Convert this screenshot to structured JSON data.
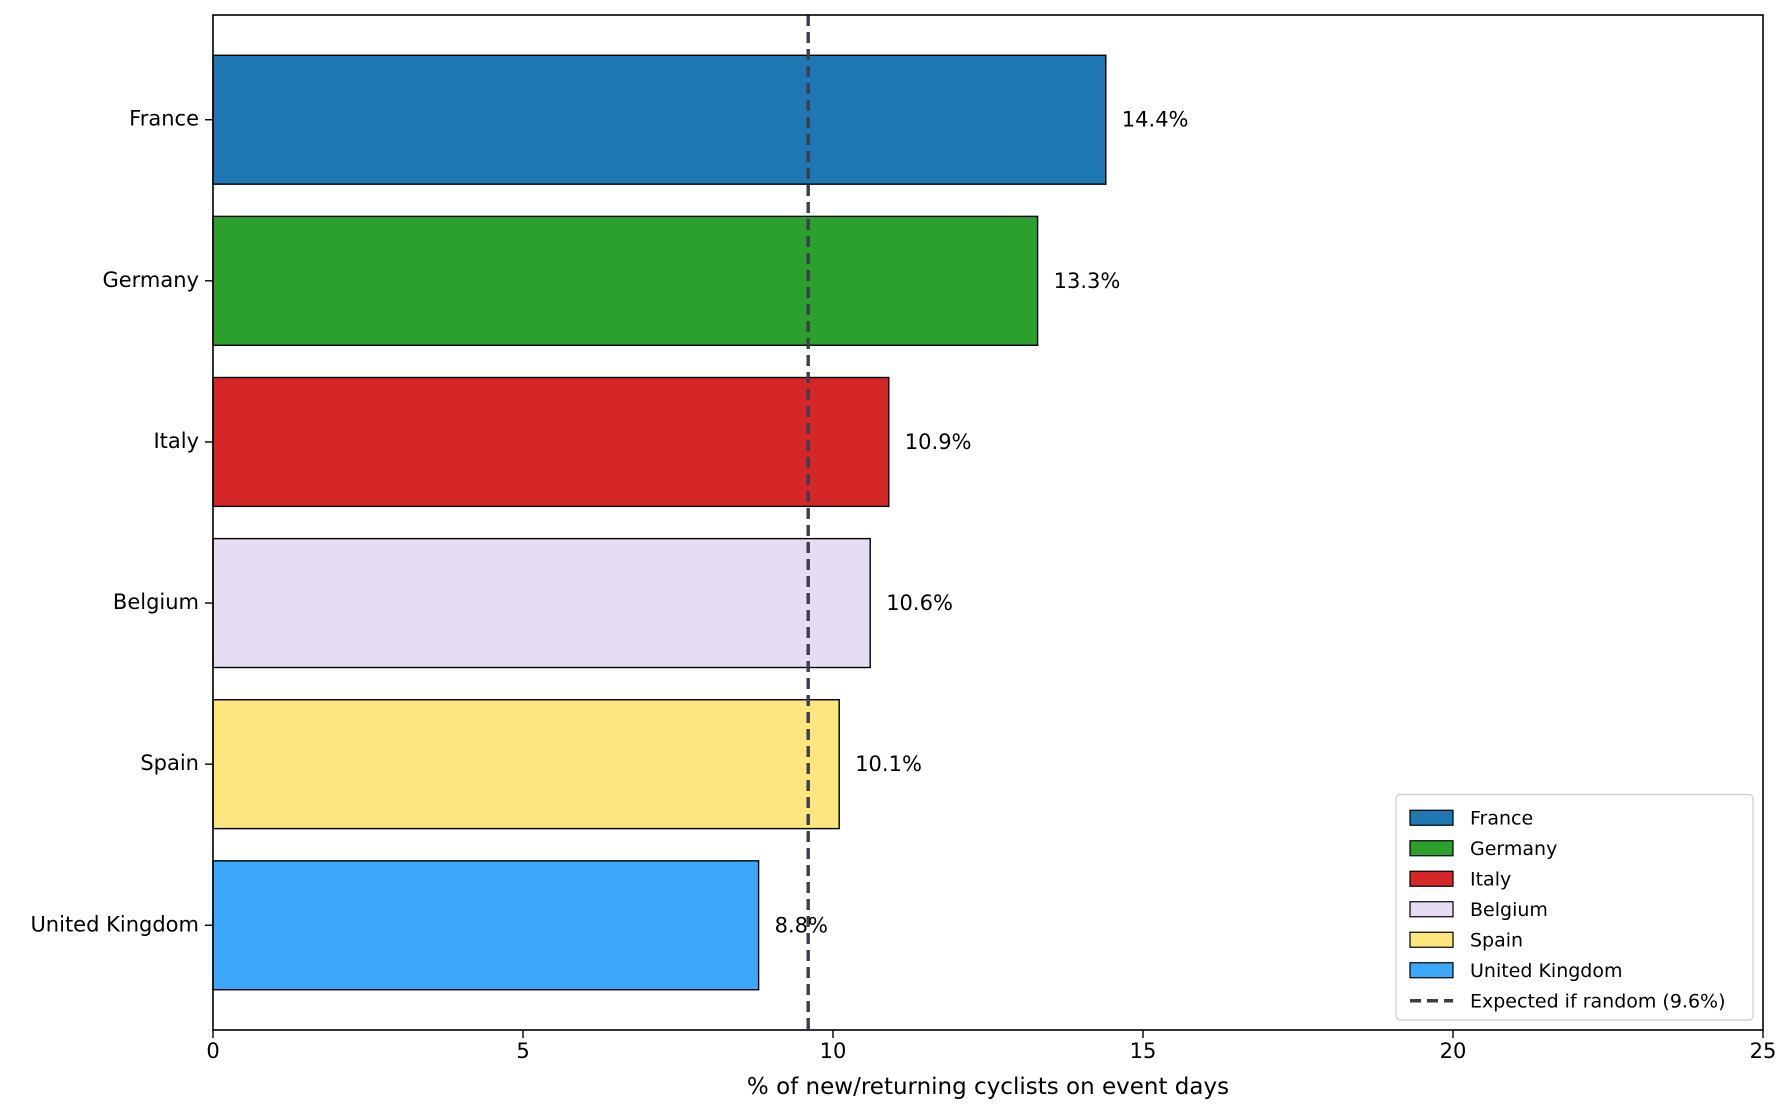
{
  "chart_data": {
    "type": "bar",
    "orientation": "horizontal",
    "categories": [
      "France",
      "Germany",
      "Italy",
      "Belgium",
      "Spain",
      "United Kingdom"
    ],
    "values": [
      14.4,
      13.3,
      10.9,
      10.6,
      10.1,
      8.8
    ],
    "data_labels": [
      "14.4%",
      "13.3%",
      "10.9%",
      "10.6%",
      "10.1%",
      "8.8%"
    ],
    "colors": [
      "#1f77b4",
      "#2ca02c",
      "#d62728",
      "#e6dcf3",
      "#fce67d",
      "#3ba8fd"
    ],
    "xlabel": "% of new/returning cyclists on event days",
    "ylabel": "",
    "title": "",
    "xlim": [
      0,
      25
    ],
    "xticks": [
      0,
      5,
      10,
      15,
      20,
      25
    ],
    "xtick_labels": [
      "0",
      "5",
      "10",
      "15",
      "20",
      "25"
    ],
    "reference_line": {
      "value": 9.6,
      "label": "Expected if random (9.6%)",
      "color": "#3d3d4d",
      "style": "dashed"
    },
    "legend": {
      "placement": "lower-right",
      "entries": [
        "France",
        "Germany",
        "Italy",
        "Belgium",
        "Spain",
        "United Kingdom",
        "Expected if random (9.6%)"
      ]
    },
    "grid": false
  }
}
